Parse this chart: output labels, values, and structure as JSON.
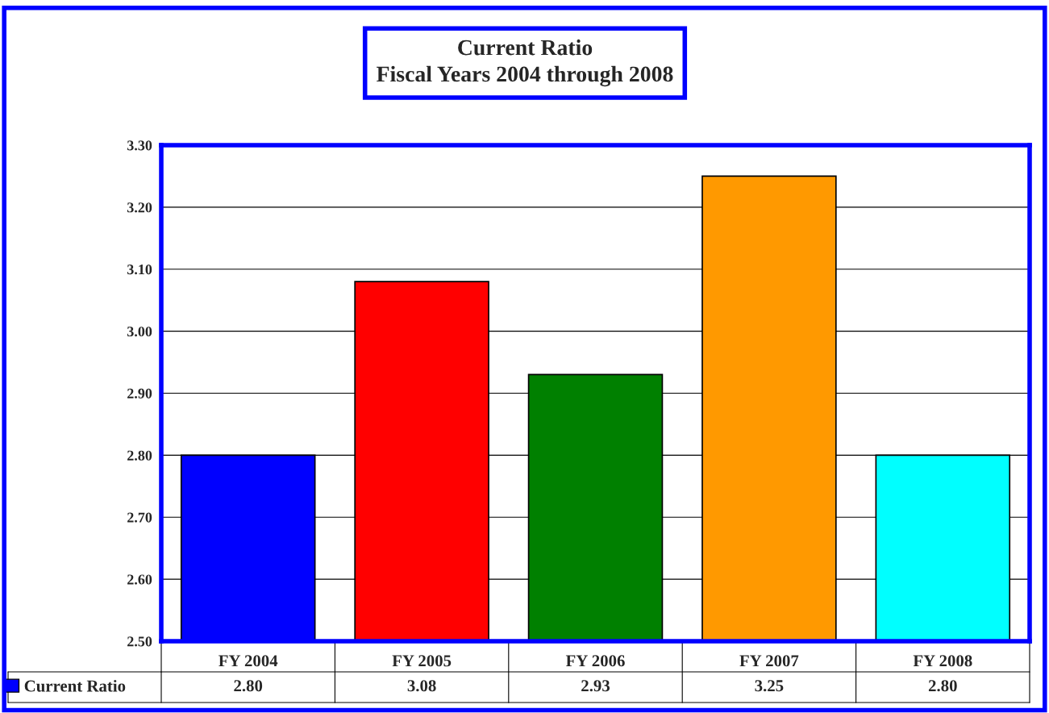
{
  "chart_data": {
    "type": "bar",
    "title": "Current Ratio\nFiscal Years 2004 through 2008",
    "categories": [
      "FY 2004",
      "FY 2005",
      "FY 2006",
      "FY 2007",
      "FY 2008"
    ],
    "series": [
      {
        "name": "Current Ratio",
        "color": "#0000ff",
        "colors": [
          "#0000ff",
          "#ff0000",
          "#008000",
          "#ff9900",
          "#00ffff"
        ],
        "values": [
          2.8,
          3.08,
          2.93,
          3.25,
          2.8
        ],
        "value_labels": [
          "2.80",
          "3.08",
          "2.93",
          "3.25",
          "2.80"
        ]
      }
    ],
    "ylim": [
      2.5,
      3.3
    ],
    "yticks": [
      {
        "value": 2.5,
        "label": "2.50"
      },
      {
        "value": 2.6,
        "label": "2.60"
      },
      {
        "value": 2.7,
        "label": "2.70"
      },
      {
        "value": 2.8,
        "label": "2.80"
      },
      {
        "value": 2.9,
        "label": "2.90"
      },
      {
        "value": 3.0,
        "label": "3.00"
      },
      {
        "value": 3.1,
        "label": "3.10"
      },
      {
        "value": 3.2,
        "label": "3.20"
      },
      {
        "value": 3.3,
        "label": "3.30"
      }
    ],
    "grid": "y",
    "legend": "bottom left"
  }
}
